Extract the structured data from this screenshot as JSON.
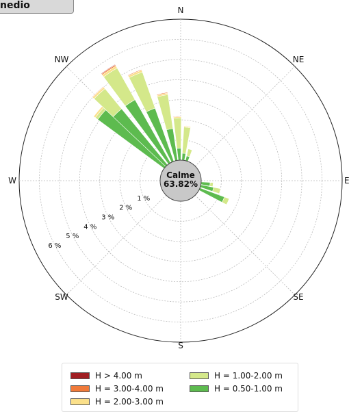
{
  "header": {
    "title": "nedio"
  },
  "chart_data": {
    "type": "polar-bar",
    "directions": [
      "N",
      "NE",
      "E",
      "SE",
      "S",
      "SW",
      "W",
      "NW"
    ],
    "ring_labels": [
      "1 %",
      "2 %",
      "3 %",
      "4 %",
      "5 %",
      "6 %"
    ],
    "center_label": "Calme",
    "center_value": "63.82%",
    "series": [
      {
        "name": "H = 0.50-1.00 m",
        "color": "#5dbb4f"
      },
      {
        "name": "H = 1.00-2.00 m",
        "color": "#d4e88a"
      },
      {
        "name": "H = 2.00-3.00 m",
        "color": "#fbe08a"
      },
      {
        "name": "H = 3.00-4.00 m",
        "color": "#f07a3a"
      },
      {
        "name": "H > 4.00 m",
        "color": "#a01e22"
      }
    ],
    "sectors": [
      {
        "bearing": 310,
        "values": [
          4.1,
          0.15,
          0.1,
          0,
          0
        ]
      },
      {
        "bearing": 317,
        "values": [
          3.6,
          1.3,
          0.1,
          0.03,
          0
        ]
      },
      {
        "bearing": 327,
        "values": [
          3.6,
          1.8,
          0.12,
          0.06,
          0.03
        ]
      },
      {
        "bearing": 337,
        "values": [
          2.8,
          1.9,
          0.1,
          0.04,
          0.02
        ]
      },
      {
        "bearing": 348,
        "values": [
          1.6,
          1.7,
          0.08,
          0.04,
          0.02
        ]
      },
      {
        "bearing": 357,
        "values": [
          0.6,
          1.5,
          0.06,
          0.03,
          0.01
        ]
      },
      {
        "bearing": 7,
        "values": [
          0.35,
          1.3,
          0.05,
          0.02,
          0
        ]
      },
      {
        "bearing": 17,
        "values": [
          0.25,
          0.35,
          0,
          0,
          0
        ]
      },
      {
        "bearing": 97,
        "values": [
          0.45,
          0.15,
          0,
          0,
          0
        ]
      },
      {
        "bearing": 105,
        "values": [
          0.65,
          0.35,
          0,
          0,
          0
        ]
      },
      {
        "bearing": 114,
        "values": [
          1.3,
          0.25,
          0,
          0,
          0
        ]
      }
    ],
    "rmax": 7,
    "grid": true
  },
  "legend": {
    "items": [
      {
        "label": "H > 4.00 m",
        "color": "#a01e22"
      },
      {
        "label": "H = 3.00-4.00 m",
        "color": "#f07a3a"
      },
      {
        "label": "H = 2.00-3.00 m",
        "color": "#fbe08a"
      },
      {
        "label": "H = 1.00-2.00 m",
        "color": "#d4e88a"
      },
      {
        "label": "H = 0.50-1.00 m",
        "color": "#5dbb4f"
      }
    ]
  }
}
